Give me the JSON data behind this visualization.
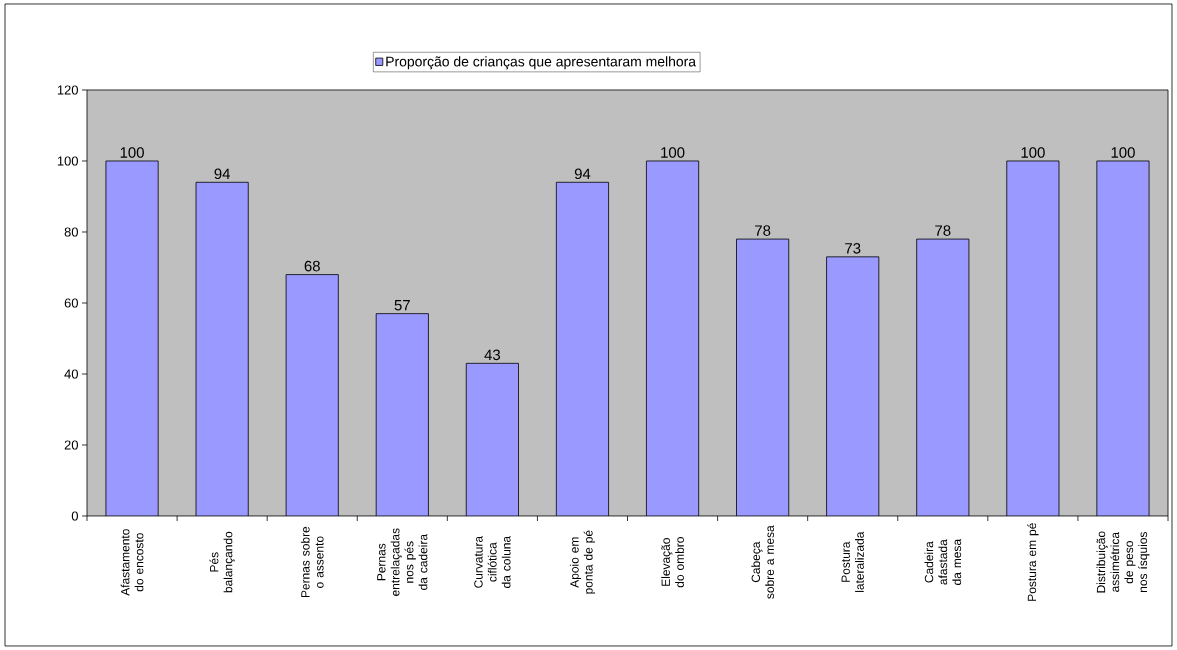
{
  "chart_data": {
    "type": "bar",
    "categories": [
      "Afastamento do encosto",
      "Pés balançando",
      "Pernas sobre o assento",
      "Pernas entrelaçadas nos pés da cadeira",
      "Curvatura ciflótica da coluna",
      "Apoio em ponta de pé",
      "Elevação do ombro",
      "Cabeça sobre a mesa",
      "Postura lateralizada",
      "Cadeira afastada da mesa",
      "Postura em pé",
      "Distribuição assimétrica de peso nos ísquios"
    ],
    "series": [
      {
        "name": "Proporção de crianças que apresentaram melhora",
        "color": "#9999ff",
        "values": [
          100,
          94,
          68,
          57,
          43,
          94,
          100,
          78,
          73,
          78,
          100,
          100
        ]
      }
    ],
    "ylim": [
      0,
      120
    ],
    "yticks": [
      0,
      20,
      40,
      60,
      80,
      100,
      120
    ],
    "data_labels": true,
    "legend": "top",
    "grid": false
  }
}
